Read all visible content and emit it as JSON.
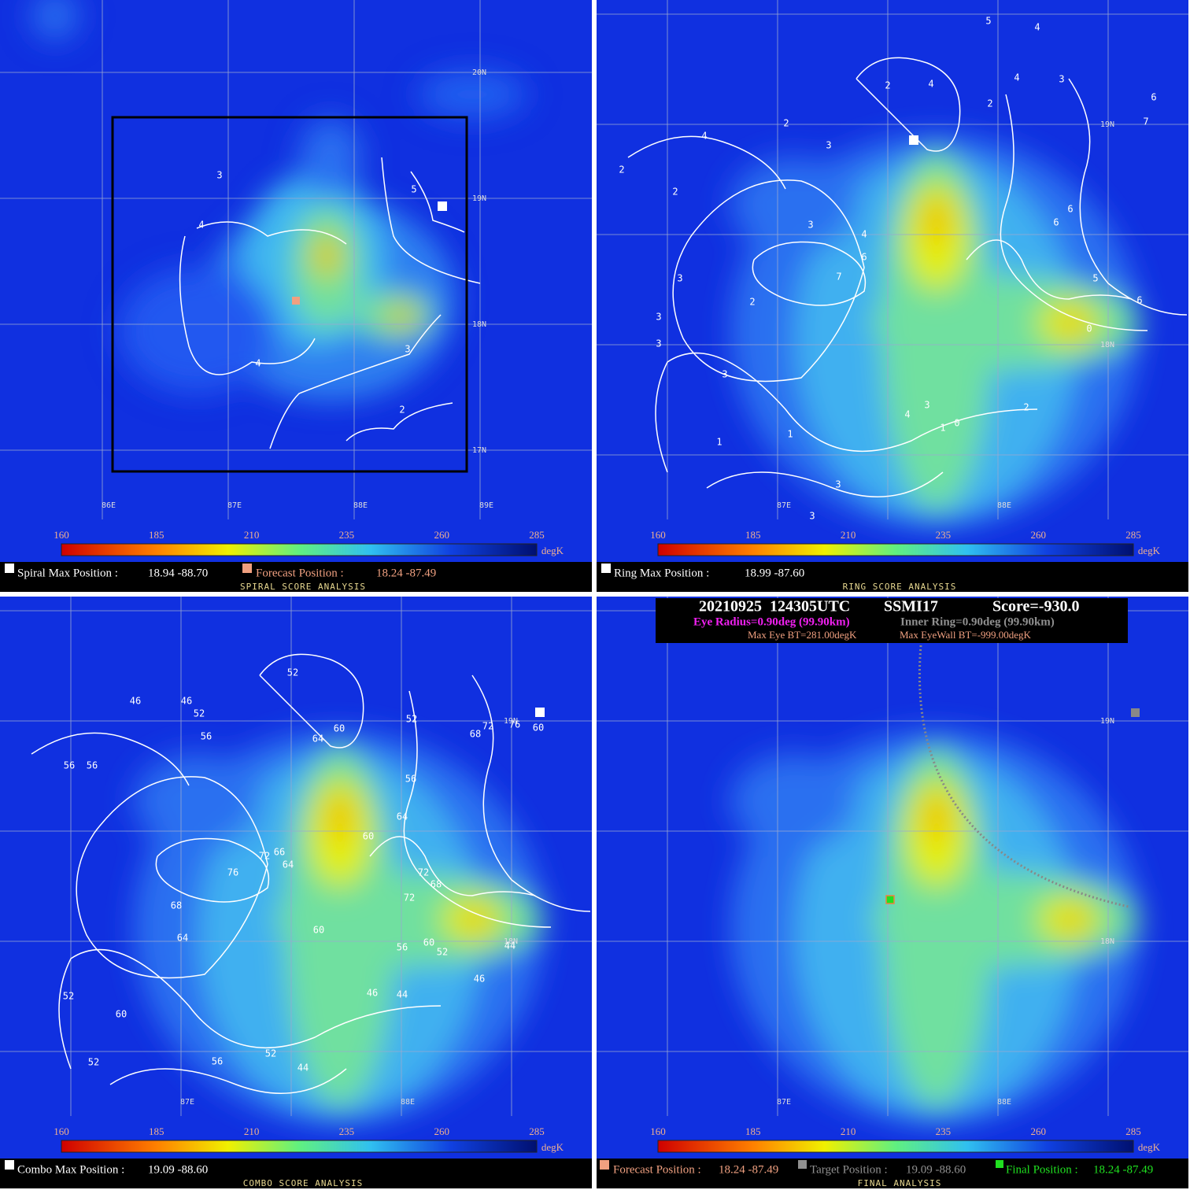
{
  "colorbar": {
    "ticks": [
      160,
      185,
      210,
      235,
      260,
      285
    ],
    "unit": "degK"
  },
  "panels": [
    {
      "max_label": "Spiral Max Position :",
      "max_value": "18.94 -88.70",
      "forecast_label": "Forecast Position :",
      "forecast_value": "18.24 -87.49",
      "subtitle": "SPIRAL SCORE ANALYSIS",
      "lat_labels": [
        "20N",
        "19N",
        "18N",
        "17N"
      ],
      "lon_labels": [
        "86E",
        "87E",
        "88E",
        "89E"
      ],
      "contour_labels": [
        "3",
        "5",
        "4",
        "4",
        "3",
        "2"
      ]
    },
    {
      "max_label": "Ring Max Position :",
      "max_value": "18.99 -87.60",
      "subtitle": "RING SCORE ANALYSIS",
      "lat_labels": [
        "19N",
        "18N"
      ],
      "lon_labels": [
        "87E",
        "88E"
      ],
      "contour_labels": [
        "5",
        "4",
        "3",
        "4",
        "2",
        "4",
        "2",
        "2",
        "4",
        "2",
        "3",
        "6",
        "7",
        "2",
        "3",
        "4",
        "6",
        "7",
        "3",
        "2",
        "3",
        "3",
        "3",
        "1",
        "1",
        "3",
        "3",
        "5",
        "6",
        "0",
        "2",
        "4",
        "3",
        "1",
        "0",
        "6",
        "6"
      ]
    },
    {
      "max_label": "Combo Max Position :",
      "max_value": "19.09 -88.60",
      "subtitle": "COMBO SCORE ANALYSIS",
      "lat_labels": [
        "19N",
        "18N"
      ],
      "lon_labels": [
        "87E",
        "88E"
      ],
      "contour_labels": [
        "52",
        "46",
        "46",
        "52",
        "56",
        "64",
        "60",
        "52",
        "72",
        "68",
        "76",
        "60",
        "56",
        "56",
        "56",
        "64",
        "60",
        "72",
        "66",
        "64",
        "76",
        "72",
        "68",
        "72",
        "68",
        "64",
        "60",
        "56",
        "60",
        "52",
        "44",
        "46",
        "46",
        "44",
        "52",
        "60",
        "52",
        "56",
        "52",
        "44"
      ]
    },
    {
      "forecast_label": "Forecast Position :",
      "forecast_value": "18.24 -87.49",
      "target_label": "Target Position :",
      "target_value": "19.09 -88.60",
      "final_label": "Final Position :",
      "final_value": "18.24 -87.49",
      "subtitle": "FINAL ANALYSIS",
      "lat_labels": [
        "19N",
        "18N"
      ],
      "lon_labels": [
        "87E",
        "88E"
      ],
      "header": {
        "date": "20210925  124305UTC",
        "sensor": "SSMI17",
        "score": "Score=-930.0",
        "eye_radius": "Eye Radius=0.90deg (99.90km)",
        "inner_ring": "Inner Ring=0.90deg (99.90km)",
        "max_eye_bt": "Max Eye BT=281.00degK",
        "max_eyewall_bt": "Max EyeWall BT=-999.00degK"
      }
    }
  ]
}
